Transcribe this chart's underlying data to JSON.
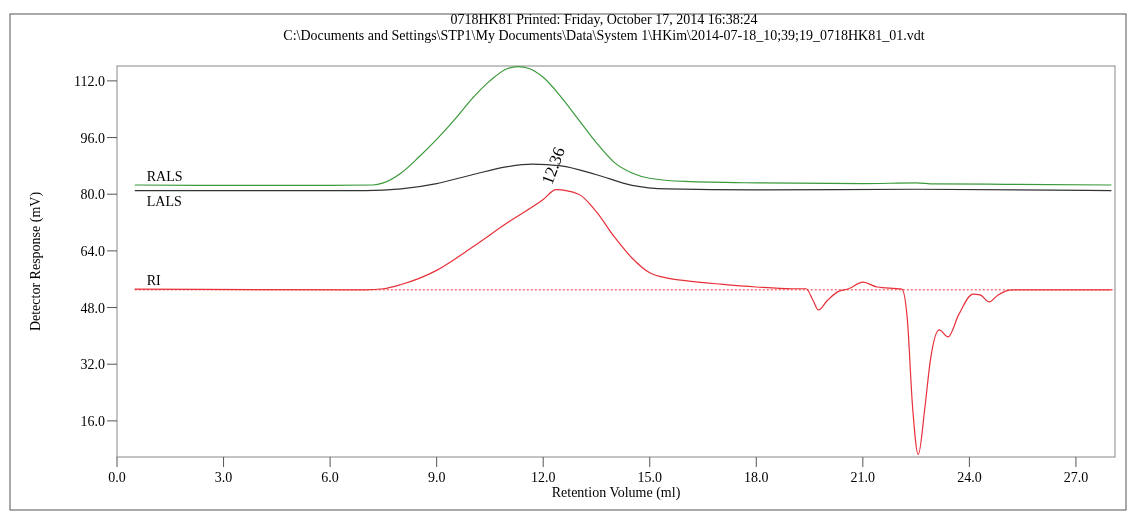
{
  "chart_data": {
    "type": "line",
    "title": "0718HK81   Printed: Friday, October 17, 2014 16:38:24",
    "subtitle": "C:\\Documents and Settings\\STP1\\My Documents\\Data\\System 1\\HKim\\2014-07-18_10;39;19_0718HK81_01.vdt",
    "xlabel": "Retention Volume (ml)",
    "ylabel": "Detector Response (mV)",
    "xlim": [
      0,
      28.1
    ],
    "ylim": [
      5.8,
      116.2
    ],
    "xticks": [
      {
        "value": 0,
        "label": "0.0"
      },
      {
        "value": 3,
        "label": "3.0"
      },
      {
        "value": 6,
        "label": "6.0"
      },
      {
        "value": 9,
        "label": "9.0"
      },
      {
        "value": 12,
        "label": "12.0"
      },
      {
        "value": 15,
        "label": "15.0"
      },
      {
        "value": 18,
        "label": "18.0"
      },
      {
        "value": 21,
        "label": "21.0"
      },
      {
        "value": 24,
        "label": "24.0"
      },
      {
        "value": 27,
        "label": "27.0"
      }
    ],
    "yticks": [
      {
        "value": 16,
        "label": "16.0"
      },
      {
        "value": 32,
        "label": "32.0"
      },
      {
        "value": 48,
        "label": "48.0"
      },
      {
        "value": 64,
        "label": "64.0"
      },
      {
        "value": 80,
        "label": "80.0"
      },
      {
        "value": 96,
        "label": "96.0"
      },
      {
        "value": 112,
        "label": "112.0"
      }
    ],
    "grid": false,
    "marker": "none",
    "line_style": "solid",
    "series": [
      {
        "name": "RALS",
        "color": "#3a9a3a",
        "x": [
          0.5,
          3,
          6,
          7.2,
          7.5,
          8,
          8.5,
          9,
          9.5,
          10,
          10.5,
          11,
          11.3,
          11.6,
          12,
          12.5,
          13,
          13.5,
          14,
          14.5,
          15,
          16,
          18,
          21,
          22.5,
          23,
          25,
          28
        ],
        "values": [
          82.6,
          82.5,
          82.5,
          82.6,
          83.2,
          86,
          90.5,
          95.5,
          101,
          107,
          112,
          115.5,
          116,
          115.5,
          113,
          107.5,
          101,
          94.5,
          89,
          86,
          84.5,
          83.6,
          83.2,
          83,
          83.2,
          82.9,
          82.8,
          82.6
        ]
      },
      {
        "name": "LALS",
        "color": "#333333",
        "x": [
          0.5,
          7,
          8,
          9,
          10,
          11,
          11.7,
          12.5,
          13.5,
          14.5,
          15.5,
          18,
          22.5,
          28
        ],
        "values": [
          81,
          81,
          81.5,
          83,
          85.5,
          87.8,
          88.5,
          88,
          85.5,
          82.5,
          81.5,
          81.2,
          81.4,
          81
        ]
      },
      {
        "name": "RI",
        "color": "#e8303a",
        "x": [
          0.5,
          7,
          7.5,
          8,
          9,
          10,
          11,
          12,
          12.36,
          13,
          13.5,
          14,
          14.5,
          15,
          15.5,
          16,
          17,
          18,
          19,
          19.4,
          19.6,
          19.75,
          20,
          20.3,
          20.6,
          21,
          21.4,
          22.1,
          22.25,
          22.4,
          22.56,
          22.75,
          22.9,
          23.15,
          23.4,
          23.7,
          24.1,
          24.3,
          24.56,
          24.8,
          25.2,
          28
        ],
        "values": [
          53.2,
          53,
          53.3,
          54.5,
          58.5,
          65,
          72,
          78.5,
          81.3,
          80,
          75,
          68,
          62,
          57.8,
          56.3,
          55.6,
          54.6,
          53.8,
          53.3,
          53.3,
          50,
          47.3,
          50,
          52.5,
          53.3,
          55.2,
          53.8,
          53.2,
          45,
          20,
          6.5,
          20,
          33,
          41.7,
          39.7,
          46,
          51.8,
          51.6,
          49.6,
          51.5,
          53,
          53
        ]
      }
    ],
    "ref_lines": [
      {
        "axis": "y",
        "value": 53,
        "color": "#e8303a",
        "line_style": "dotted"
      }
    ],
    "annotations": [
      {
        "text": "12.36",
        "x": 12.36,
        "y": 81.3
      }
    ]
  }
}
